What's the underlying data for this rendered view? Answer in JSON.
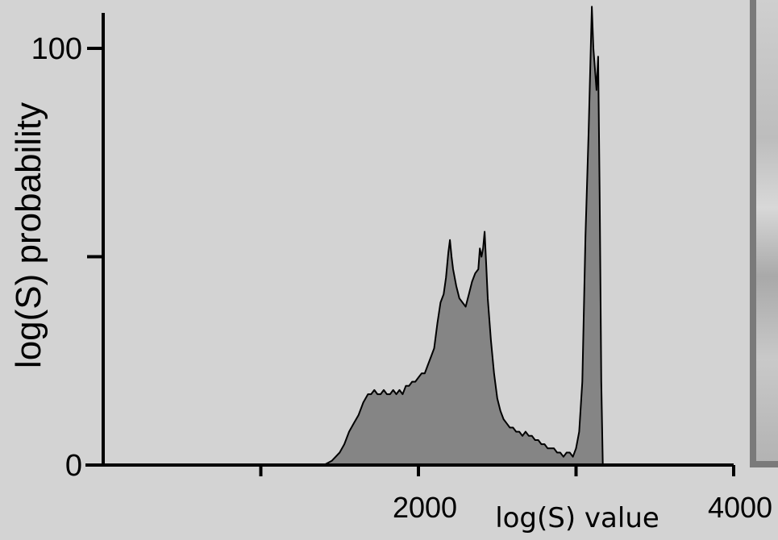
{
  "chart_data": {
    "type": "area",
    "title": "",
    "xlabel": "log(S) value",
    "ylabel": "log(S) probability",
    "xlim": [
      0,
      4000
    ],
    "ylim": [
      0,
      110
    ],
    "x_ticks": [
      1000,
      2000,
      3000,
      4000
    ],
    "x_tick_labels": [
      "",
      "2000",
      "",
      "4000"
    ],
    "y_ticks": [
      0,
      50,
      100
    ],
    "y_tick_labels": [
      "0",
      "",
      "100"
    ],
    "grid": false,
    "legend": "none",
    "colors": {
      "fill": "#858585",
      "line": "#000000",
      "background": "#d3d3d3"
    },
    "series": [
      {
        "x": [
          1400,
          1450,
          1500,
          1530,
          1560,
          1590,
          1620,
          1650,
          1680,
          1700,
          1720,
          1740,
          1760,
          1780,
          1800,
          1820,
          1840,
          1860,
          1880,
          1900,
          1920,
          1940,
          1960,
          1980,
          2000,
          2020,
          2040,
          2060,
          2080,
          2100,
          2120,
          2140,
          2160,
          2175,
          2190,
          2200,
          2210,
          2220,
          2240,
          2260,
          2280,
          2300,
          2320,
          2340,
          2360,
          2380,
          2390,
          2400,
          2410,
          2420,
          2430,
          2440,
          2460,
          2480,
          2500,
          2520,
          2540,
          2560,
          2580,
          2600,
          2620,
          2640,
          2660,
          2680,
          2700,
          2720,
          2740,
          2760,
          2780,
          2800,
          2820,
          2840,
          2860,
          2880,
          2900,
          2920,
          2940,
          2960,
          2980,
          3000,
          3020,
          3040,
          3060,
          3080,
          3100,
          3110,
          3120,
          3130,
          3140,
          3150,
          3160,
          3170,
          3180,
          3190,
          3200,
          3300
        ],
        "y": [
          0,
          1,
          3,
          5,
          8,
          10,
          12,
          15,
          17,
          17,
          18,
          17,
          17,
          18,
          17,
          17,
          18,
          17,
          18,
          17,
          19,
          19,
          20,
          20,
          21,
          22,
          22,
          24,
          26,
          28,
          34,
          39,
          41,
          45,
          51,
          54,
          50,
          47,
          43,
          40,
          39,
          38,
          41,
          44,
          46,
          47,
          52,
          50,
          52,
          56,
          48,
          40,
          30,
          22,
          16,
          13,
          11,
          10,
          9,
          9,
          8,
          8,
          7,
          8,
          7,
          7,
          6,
          6,
          5,
          5,
          4,
          4,
          4,
          3,
          3,
          2,
          3,
          3,
          2,
          4,
          8,
          20,
          55,
          80,
          110,
          100,
          95,
          90,
          98,
          65,
          20,
          0,
          0,
          0,
          0,
          0
        ]
      }
    ]
  }
}
